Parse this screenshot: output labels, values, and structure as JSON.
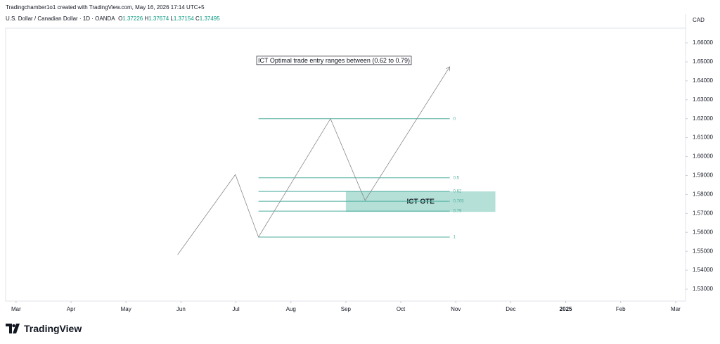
{
  "header": {
    "credit": "Tradingchamber1o1 created with TradingView.com, May 16, 2026 17:14 UTC+5",
    "symbol": "U.S. Dollar / Canadian Dollar · 1D · OANDA",
    "ohlc": [
      {
        "label": "O",
        "value": 1.37226
      },
      {
        "label": "H",
        "value": 1.37674
      },
      {
        "label": "L",
        "value": 1.37154
      },
      {
        "label": "C",
        "value": 1.37495
      }
    ],
    "currency": "CAD"
  },
  "chart_data": {
    "type": "line",
    "annotation": "ICT Optimal trade entry ranges between (0.62 to 0.79)",
    "series": [
      {
        "color": "#8a8a8a",
        "x": [
          2.94,
          3.99,
          4.41,
          5.72,
          6.35,
          7.89
        ],
        "values": [
          1.5482,
          1.5905,
          1.5575,
          1.62,
          1.5768,
          1.6474
        ]
      }
    ],
    "fib": {
      "color": "#4fae9f",
      "x": [
        4.41,
        7.89
      ],
      "levels": [
        {
          "level": 0,
          "price": 1.62
        },
        {
          "level": 0.5,
          "price": 1.5888
        },
        {
          "level": 0.62,
          "price": 1.5816
        },
        {
          "level": 0.705,
          "price": 1.5764
        },
        {
          "level": 0.79,
          "price": 1.5712
        },
        {
          "level": 1,
          "price": 1.5575
        }
      ]
    },
    "zone": {
      "label": "ICT OTE",
      "color": "#b4e0d7",
      "x": [
        6.0,
        8.72
      ],
      "price": [
        1.5708,
        1.5816
      ]
    },
    "xlim": [
      -0.19,
      12.18
    ],
    "xticks": [
      {
        "value": 0,
        "label": "Mar"
      },
      {
        "value": 1,
        "label": "Apr"
      },
      {
        "value": 2,
        "label": "May"
      },
      {
        "value": 3,
        "label": "Jun"
      },
      {
        "value": 4,
        "label": "Jul"
      },
      {
        "value": 5,
        "label": "Aug"
      },
      {
        "value": 6,
        "label": "Sep"
      },
      {
        "value": 7,
        "label": "Oct"
      },
      {
        "value": 8,
        "label": "Nov"
      },
      {
        "value": 9,
        "label": "Dec"
      },
      {
        "value": 10,
        "label": "2025"
      },
      {
        "value": 11,
        "label": "Feb"
      },
      {
        "value": 12,
        "label": "Mar"
      }
    ],
    "ylim": [
      1.5237,
      1.6678
    ],
    "yticks": [
      {
        "value": 1.66,
        "label": "1.66000"
      },
      {
        "value": 1.65,
        "label": "1.65000"
      },
      {
        "value": 1.64,
        "label": "1.64000"
      },
      {
        "value": 1.63,
        "label": "1.63000"
      },
      {
        "value": 1.62,
        "label": "1.62000"
      },
      {
        "value": 1.61,
        "label": "1.61000"
      },
      {
        "value": 1.6,
        "label": "1.60000"
      },
      {
        "value": 1.59,
        "label": "1.59000"
      },
      {
        "value": 1.58,
        "label": "1.58000"
      },
      {
        "value": 1.57,
        "label": "1.57000"
      },
      {
        "value": 1.56,
        "label": "1.56000"
      },
      {
        "value": 1.55,
        "label": "1.55000"
      },
      {
        "value": 1.54,
        "label": "1.54000"
      },
      {
        "value": 1.53,
        "label": "1.53000"
      }
    ]
  },
  "footer": {
    "brand": "TradingView"
  }
}
